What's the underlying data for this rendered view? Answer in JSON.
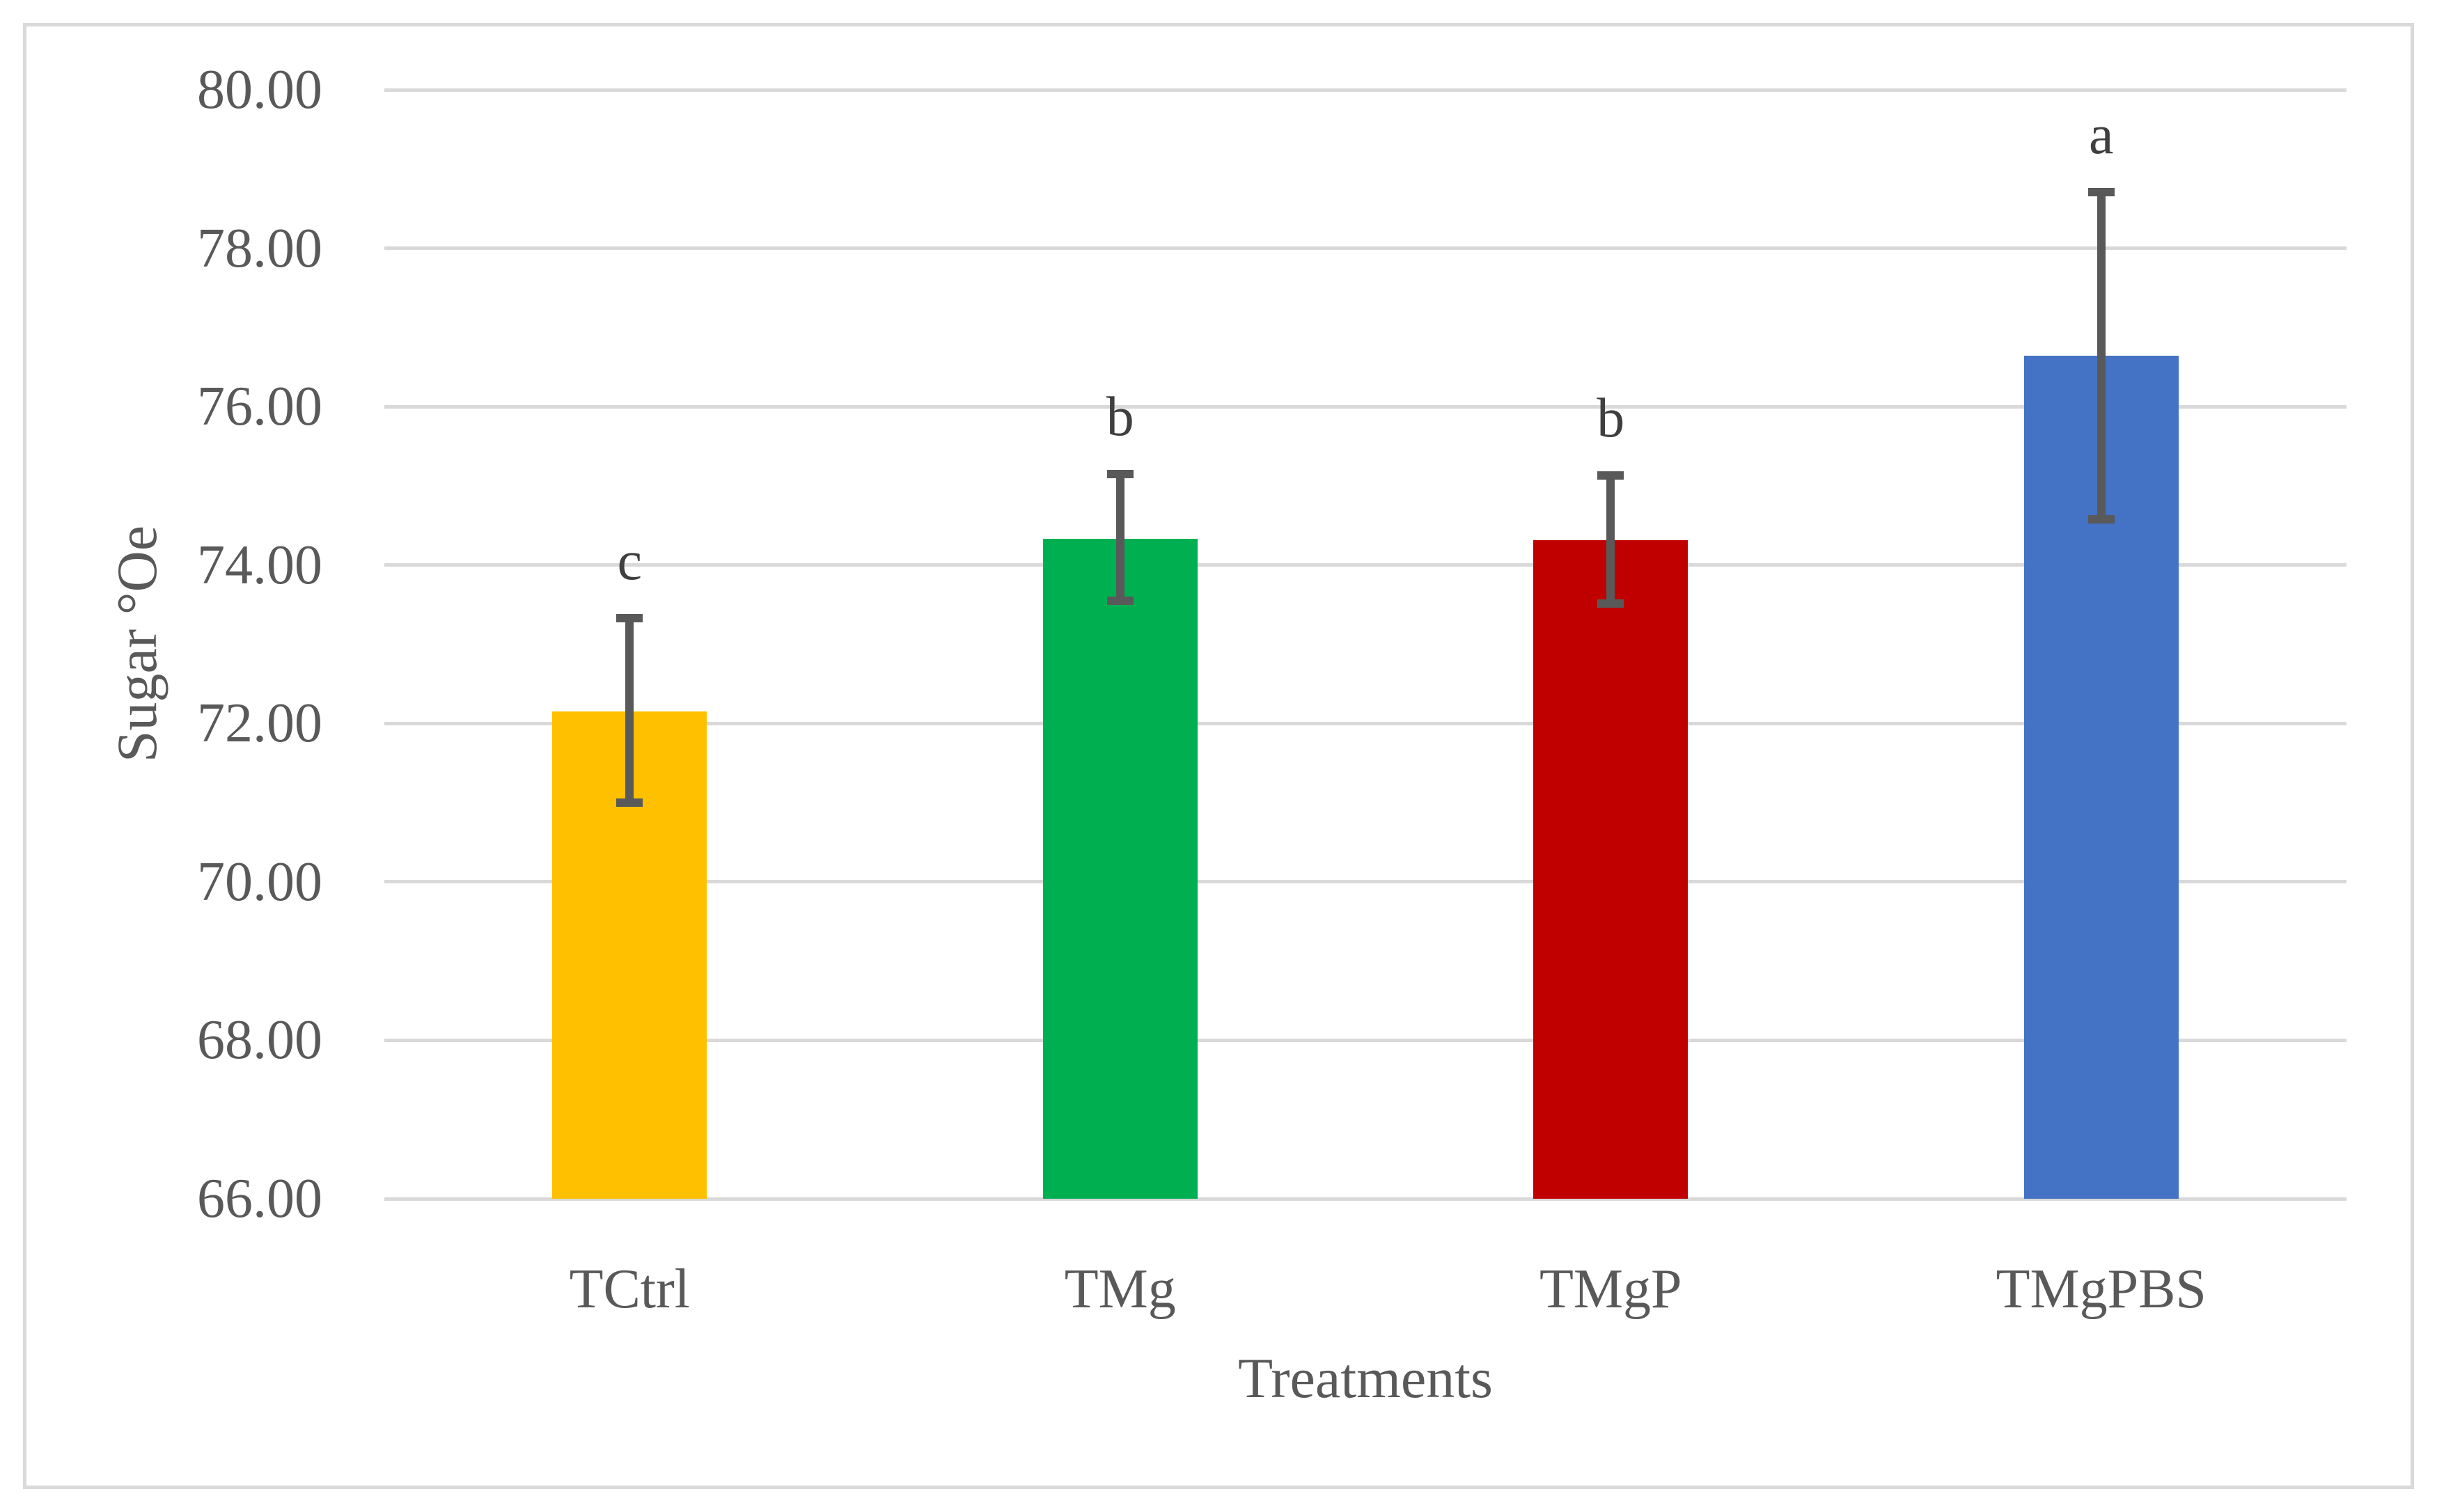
{
  "chart_data": {
    "type": "bar",
    "title": "",
    "xlabel": "Treatments",
    "ylabel": "Sugar °Oe",
    "categories": [
      "TCtrl",
      "TMg",
      "TMgP",
      "TMgPBS"
    ],
    "values": [
      72.15,
      74.33,
      74.31,
      76.64
    ],
    "error_bar_top": [
      73.33,
      75.15,
      75.13,
      78.71
    ],
    "error_bar_bottom": [
      71.0,
      73.55,
      73.51,
      74.58
    ],
    "sig_letters": [
      "c",
      "b",
      "b",
      "a"
    ],
    "bar_colors": [
      "#FFC000",
      "#00B050",
      "#C00000",
      "#4472C4"
    ],
    "ylim": [
      66,
      80
    ],
    "ytick_step": 2,
    "ytick_labels": [
      "66.00",
      "68.00",
      "70.00",
      "72.00",
      "74.00",
      "76.00",
      "78.00",
      "80.00"
    ],
    "grid": true,
    "legend": "none"
  },
  "styles": {
    "background": "#FFFFFF",
    "frame_border_color": "#D9D9D9",
    "gridline_color": "#D9D9D9",
    "axis_text_color": "#595959",
    "sig_letter_color": "#3F3F3F",
    "error_bar_color": "#595959"
  }
}
